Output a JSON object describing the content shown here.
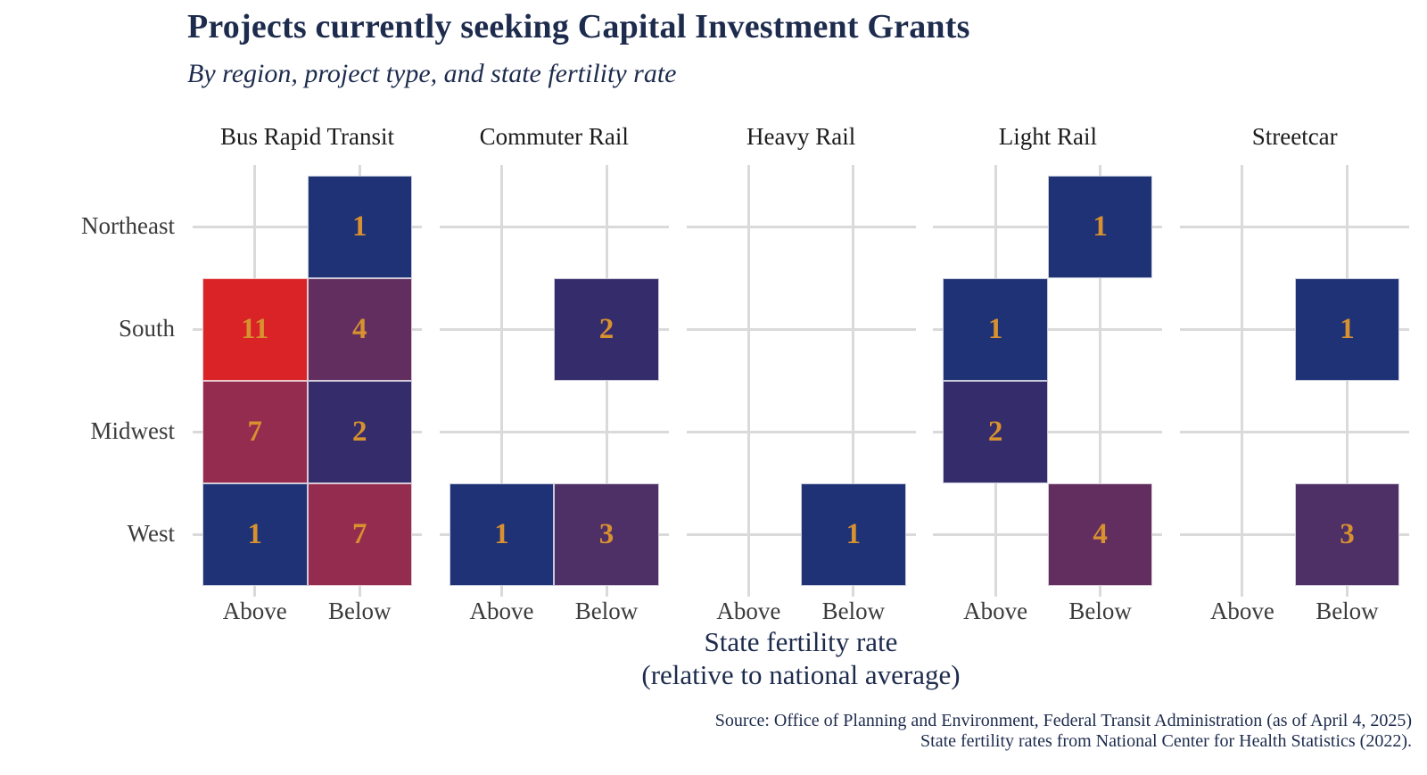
{
  "title": "Projects currently seeking Capital Investment Grants",
  "subtitle": "By region, project type, and state fertility rate",
  "x_axis": {
    "title_line1": "State fertility rate",
    "title_line2": "(relative to national average)",
    "tick_labels": [
      "Above",
      "Below"
    ]
  },
  "y_axis": {
    "labels": [
      "Northeast",
      "South",
      "Midwest",
      "West"
    ]
  },
  "caption": {
    "line1": "Source: Office of Planning and Environment, Federal Transit Administration (as of April 4, 2025)",
    "line2": "State fertility rates from National Center for Health Statistics (2022)."
  },
  "colors": {
    "background": "#ffffff",
    "title_text": "#1d2b4d",
    "facet_title_text": "#1c1c1c",
    "axis_text": "#3b3b3b",
    "gridline": "#dadada",
    "count_label": "#d8912f",
    "value_scale": {
      "1": "#1f3276",
      "2": "#352d6b",
      "3": "#4e2f66",
      "4": "#622e60",
      "7": "#942c4f",
      "11": "#d92327"
    }
  },
  "chart_data": {
    "type": "heatmap",
    "facets": [
      "Bus Rapid Transit",
      "Commuter Rail",
      "Heavy Rail",
      "Light Rail",
      "Streetcar"
    ],
    "rows": [
      "Northeast",
      "South",
      "Midwest",
      "West"
    ],
    "columns": [
      "Above",
      "Below"
    ],
    "cells": [
      {
        "facet": "Bus Rapid Transit",
        "region": "Northeast",
        "fertility": "Below",
        "count": 1
      },
      {
        "facet": "Bus Rapid Transit",
        "region": "South",
        "fertility": "Above",
        "count": 11
      },
      {
        "facet": "Bus Rapid Transit",
        "region": "South",
        "fertility": "Below",
        "count": 4
      },
      {
        "facet": "Bus Rapid Transit",
        "region": "Midwest",
        "fertility": "Above",
        "count": 7
      },
      {
        "facet": "Bus Rapid Transit",
        "region": "Midwest",
        "fertility": "Below",
        "count": 2
      },
      {
        "facet": "Bus Rapid Transit",
        "region": "West",
        "fertility": "Above",
        "count": 1
      },
      {
        "facet": "Bus Rapid Transit",
        "region": "West",
        "fertility": "Below",
        "count": 7
      },
      {
        "facet": "Commuter Rail",
        "region": "South",
        "fertility": "Below",
        "count": 2
      },
      {
        "facet": "Commuter Rail",
        "region": "West",
        "fertility": "Above",
        "count": 1
      },
      {
        "facet": "Commuter Rail",
        "region": "West",
        "fertility": "Below",
        "count": 3
      },
      {
        "facet": "Heavy Rail",
        "region": "West",
        "fertility": "Below",
        "count": 1
      },
      {
        "facet": "Light Rail",
        "region": "Northeast",
        "fertility": "Below",
        "count": 1
      },
      {
        "facet": "Light Rail",
        "region": "South",
        "fertility": "Above",
        "count": 1
      },
      {
        "facet": "Light Rail",
        "region": "Midwest",
        "fertility": "Above",
        "count": 2
      },
      {
        "facet": "Light Rail",
        "region": "West",
        "fertility": "Below",
        "count": 4
      },
      {
        "facet": "Streetcar",
        "region": "South",
        "fertility": "Below",
        "count": 1
      },
      {
        "facet": "Streetcar",
        "region": "West",
        "fertility": "Below",
        "count": 3
      }
    ]
  }
}
